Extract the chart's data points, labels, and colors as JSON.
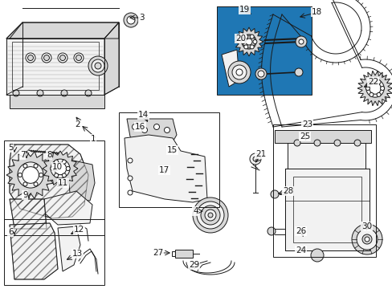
{
  "bg_color": "#ffffff",
  "lc": "#1a1a1a",
  "lw": 0.7,
  "figsize": [
    4.89,
    3.6
  ],
  "dpi": 100,
  "labels": [
    [
      "1",
      113,
      173,
      100,
      155,
      "←"
    ],
    [
      "2",
      93,
      155,
      93,
      143,
      "↑"
    ],
    [
      "3",
      173,
      22,
      158,
      22,
      "←"
    ],
    [
      "4",
      240,
      263,
      253,
      263,
      "→"
    ],
    [
      "5",
      10,
      184,
      18,
      193,
      "→"
    ],
    [
      "6",
      10,
      289,
      18,
      295,
      "→"
    ],
    [
      "7",
      25,
      193,
      33,
      200,
      "→"
    ],
    [
      "8",
      58,
      193,
      55,
      200,
      "↓"
    ],
    [
      "9",
      28,
      243,
      36,
      250,
      "↑"
    ],
    [
      "10",
      65,
      208,
      62,
      215,
      "↓"
    ],
    [
      "11",
      72,
      228,
      68,
      234,
      "←"
    ],
    [
      "12",
      92,
      286,
      85,
      293,
      "←"
    ],
    [
      "13",
      90,
      316,
      80,
      325,
      "←"
    ],
    [
      "14",
      172,
      143,
      185,
      155,
      "↓"
    ],
    [
      "15",
      208,
      187,
      215,
      195,
      "↓"
    ],
    [
      "16",
      168,
      158,
      178,
      165,
      "↓"
    ],
    [
      "17",
      198,
      212,
      205,
      220,
      "↑"
    ],
    [
      "18",
      388,
      15,
      370,
      22,
      "←"
    ],
    [
      "19",
      298,
      12,
      315,
      20,
      "↓"
    ],
    [
      "20",
      293,
      48,
      308,
      50,
      "→"
    ],
    [
      "21",
      318,
      192,
      316,
      205,
      "↑"
    ],
    [
      "22",
      458,
      102,
      450,
      110,
      "←"
    ],
    [
      "23",
      376,
      155,
      382,
      163,
      "↓"
    ],
    [
      "24",
      368,
      312,
      378,
      305,
      "↑"
    ],
    [
      "25",
      373,
      170,
      380,
      178,
      "↓"
    ],
    [
      "26",
      368,
      288,
      378,
      298,
      "↑"
    ],
    [
      "27",
      190,
      315,
      215,
      315,
      "→"
    ],
    [
      "28",
      352,
      238,
      343,
      242,
      "←"
    ],
    [
      "29",
      235,
      330,
      250,
      327,
      "→"
    ],
    [
      "30",
      450,
      282,
      455,
      290,
      "↓"
    ]
  ]
}
